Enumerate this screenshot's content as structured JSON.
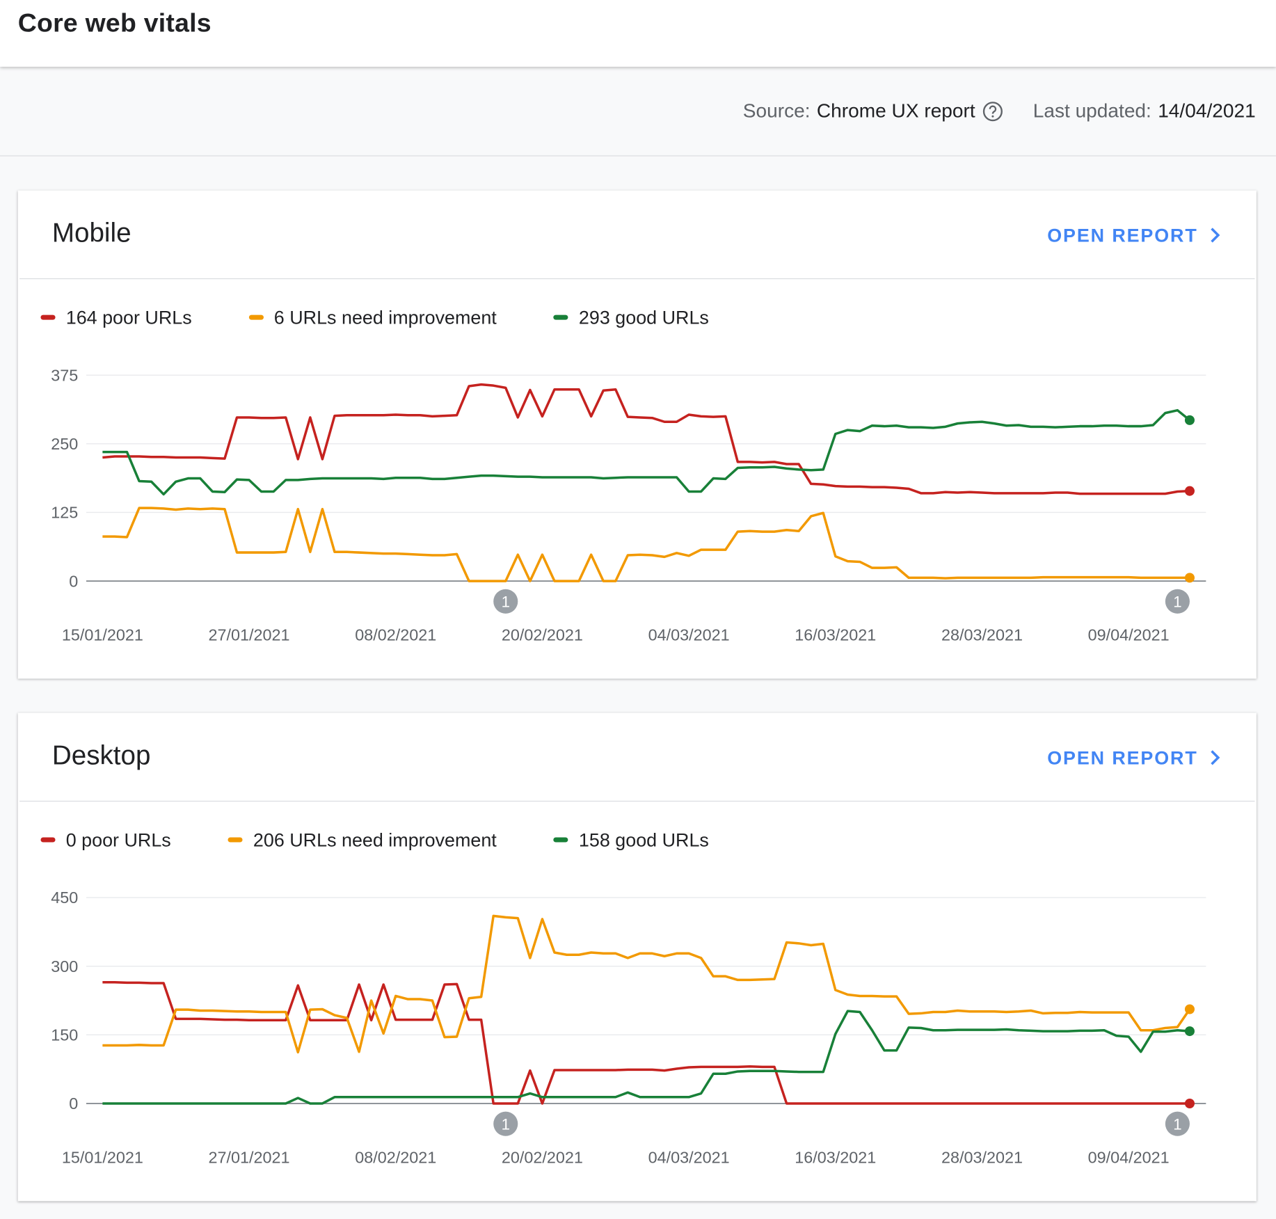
{
  "header": {
    "title": "Core web vitals"
  },
  "source": {
    "label": "Source:",
    "value": "Chrome UX report"
  },
  "updated": {
    "label": "Last updated:",
    "value": "14/04/2021"
  },
  "chart_data": [
    {
      "type": "line",
      "title": "Mobile",
      "link": "OPEN REPORT",
      "x": [
        "15/01/2021",
        "16/01/2021",
        "17/01/2021",
        "18/01/2021",
        "19/01/2021",
        "20/01/2021",
        "21/01/2021",
        "22/01/2021",
        "23/01/2021",
        "24/01/2021",
        "25/01/2021",
        "26/01/2021",
        "27/01/2021",
        "28/01/2021",
        "29/01/2021",
        "30/01/2021",
        "31/01/2021",
        "01/02/2021",
        "02/02/2021",
        "03/02/2021",
        "04/02/2021",
        "05/02/2021",
        "06/02/2021",
        "07/02/2021",
        "08/02/2021",
        "09/02/2021",
        "10/02/2021",
        "11/02/2021",
        "12/02/2021",
        "13/02/2021",
        "14/02/2021",
        "15/02/2021",
        "16/02/2021",
        "17/02/2021",
        "18/02/2021",
        "19/02/2021",
        "20/02/2021",
        "21/02/2021",
        "22/02/2021",
        "23/02/2021",
        "24/02/2021",
        "25/02/2021",
        "26/02/2021",
        "27/02/2021",
        "28/02/2021",
        "01/03/2021",
        "02/03/2021",
        "03/03/2021",
        "04/03/2021",
        "05/03/2021",
        "06/03/2021",
        "07/03/2021",
        "08/03/2021",
        "09/03/2021",
        "10/03/2021",
        "11/03/2021",
        "12/03/2021",
        "13/03/2021",
        "14/03/2021",
        "15/03/2021",
        "16/03/2021",
        "17/03/2021",
        "18/03/2021",
        "19/03/2021",
        "20/03/2021",
        "21/03/2021",
        "22/03/2021",
        "23/03/2021",
        "24/03/2021",
        "25/03/2021",
        "26/03/2021",
        "27/03/2021",
        "28/03/2021",
        "29/03/2021",
        "30/03/2021",
        "31/03/2021",
        "01/04/2021",
        "02/04/2021",
        "03/04/2021",
        "04/04/2021",
        "05/04/2021",
        "06/04/2021",
        "07/04/2021",
        "08/04/2021",
        "09/04/2021",
        "10/04/2021",
        "11/04/2021",
        "12/04/2021",
        "13/04/2021",
        "14/04/2021"
      ],
      "xticks": [
        "15/01/2021",
        "27/01/2021",
        "08/02/2021",
        "20/02/2021",
        "04/03/2021",
        "16/03/2021",
        "28/03/2021",
        "09/04/2021"
      ],
      "ylim": [
        0,
        375
      ],
      "yticks": [
        0,
        125,
        250,
        375
      ],
      "grid": true,
      "series": [
        {
          "name": "164 poor URLs",
          "color": "#c5221f",
          "values": [
            225,
            227,
            227,
            227,
            226,
            226,
            225,
            225,
            225,
            224,
            223,
            298,
            298,
            297,
            297,
            298,
            222,
            298,
            222,
            301,
            302,
            302,
            302,
            302,
            303,
            302,
            302,
            300,
            301,
            302,
            355,
            358,
            356,
            352,
            298,
            348,
            300,
            349,
            349,
            349,
            300,
            347,
            349,
            299,
            298,
            297,
            290,
            290,
            303,
            300,
            299,
            300,
            217,
            217,
            216,
            217,
            213,
            213,
            177,
            176,
            173,
            172,
            172,
            171,
            171,
            170,
            168,
            160,
            160,
            162,
            161,
            162,
            161,
            160,
            160,
            160,
            160,
            160,
            161,
            161,
            159,
            159,
            159,
            159,
            159,
            159,
            159,
            159,
            163,
            164
          ]
        },
        {
          "name": "6 URLs need improvement",
          "color": "#f29900",
          "values": [
            81,
            81,
            80,
            133,
            133,
            132,
            130,
            132,
            131,
            132,
            131,
            52,
            52,
            52,
            52,
            53,
            131,
            53,
            131,
            53,
            53,
            52,
            51,
            50,
            50,
            49,
            48,
            47,
            47,
            49,
            0,
            0,
            0,
            0,
            48,
            0,
            48,
            0,
            0,
            0,
            48,
            0,
            0,
            47,
            48,
            47,
            44,
            51,
            46,
            57,
            57,
            57,
            90,
            91,
            90,
            90,
            93,
            91,
            118,
            124,
            45,
            36,
            35,
            24,
            24,
            25,
            6,
            6,
            6,
            5,
            6,
            6,
            6,
            6,
            6,
            6,
            6,
            7,
            7,
            7,
            7,
            7,
            7,
            7,
            7,
            6,
            6,
            6,
            6,
            6
          ]
        },
        {
          "name": "293 good URLs",
          "color": "#188038",
          "values": [
            235,
            235,
            235,
            182,
            181,
            158,
            181,
            187,
            187,
            163,
            162,
            185,
            184,
            163,
            163,
            184,
            184,
            186,
            187,
            187,
            187,
            187,
            187,
            186,
            188,
            188,
            188,
            186,
            186,
            188,
            190,
            192,
            192,
            191,
            190,
            190,
            189,
            189,
            189,
            189,
            189,
            187,
            188,
            189,
            189,
            189,
            189,
            189,
            163,
            163,
            187,
            186,
            206,
            207,
            207,
            208,
            205,
            203,
            202,
            203,
            268,
            275,
            273,
            283,
            282,
            283,
            280,
            280,
            279,
            281,
            287,
            289,
            290,
            287,
            283,
            284,
            281,
            281,
            280,
            281,
            282,
            282,
            283,
            283,
            282,
            282,
            284,
            306,
            311,
            293
          ]
        }
      ],
      "annotations": [
        {
          "x": "17/02/2021",
          "label": "1"
        },
        {
          "x": "13/04/2021",
          "label": "1"
        }
      ]
    },
    {
      "type": "line",
      "title": "Desktop",
      "link": "OPEN REPORT",
      "x": [
        "15/01/2021",
        "16/01/2021",
        "17/01/2021",
        "18/01/2021",
        "19/01/2021",
        "20/01/2021",
        "21/01/2021",
        "22/01/2021",
        "23/01/2021",
        "24/01/2021",
        "25/01/2021",
        "26/01/2021",
        "27/01/2021",
        "28/01/2021",
        "29/01/2021",
        "30/01/2021",
        "31/01/2021",
        "01/02/2021",
        "02/02/2021",
        "03/02/2021",
        "04/02/2021",
        "05/02/2021",
        "06/02/2021",
        "07/02/2021",
        "08/02/2021",
        "09/02/2021",
        "10/02/2021",
        "11/02/2021",
        "12/02/2021",
        "13/02/2021",
        "14/02/2021",
        "15/02/2021",
        "16/02/2021",
        "17/02/2021",
        "18/02/2021",
        "19/02/2021",
        "20/02/2021",
        "21/02/2021",
        "22/02/2021",
        "23/02/2021",
        "24/02/2021",
        "25/02/2021",
        "26/02/2021",
        "27/02/2021",
        "28/02/2021",
        "01/03/2021",
        "02/03/2021",
        "03/03/2021",
        "04/03/2021",
        "05/03/2021",
        "06/03/2021",
        "07/03/2021",
        "08/03/2021",
        "09/03/2021",
        "10/03/2021",
        "11/03/2021",
        "12/03/2021",
        "13/03/2021",
        "14/03/2021",
        "15/03/2021",
        "16/03/2021",
        "17/03/2021",
        "18/03/2021",
        "19/03/2021",
        "20/03/2021",
        "21/03/2021",
        "22/03/2021",
        "23/03/2021",
        "24/03/2021",
        "25/03/2021",
        "26/03/2021",
        "27/03/2021",
        "28/03/2021",
        "29/03/2021",
        "30/03/2021",
        "31/03/2021",
        "01/04/2021",
        "02/04/2021",
        "03/04/2021",
        "04/04/2021",
        "05/04/2021",
        "06/04/2021",
        "07/04/2021",
        "08/04/2021",
        "09/04/2021",
        "10/04/2021",
        "11/04/2021",
        "12/04/2021",
        "13/04/2021",
        "14/04/2021"
      ],
      "xticks": [
        "15/01/2021",
        "27/01/2021",
        "08/02/2021",
        "20/02/2021",
        "04/03/2021",
        "16/03/2021",
        "28/03/2021",
        "09/04/2021"
      ],
      "ylim": [
        0,
        450
      ],
      "yticks": [
        0,
        150,
        300,
        450
      ],
      "grid": true,
      "series": [
        {
          "name": "0 poor URLs",
          "color": "#c5221f",
          "values": [
            265,
            265,
            264,
            264,
            263,
            263,
            185,
            185,
            185,
            184,
            183,
            183,
            182,
            182,
            182,
            182,
            258,
            182,
            182,
            182,
            182,
            260,
            182,
            260,
            183,
            183,
            183,
            183,
            260,
            261,
            183,
            183,
            0,
            0,
            0,
            72,
            0,
            73,
            73,
            73,
            73,
            73,
            73,
            74,
            74,
            74,
            72,
            76,
            79,
            80,
            80,
            80,
            80,
            81,
            80,
            80,
            0,
            0,
            0,
            0,
            0,
            0,
            0,
            0,
            0,
            0,
            0,
            0,
            0,
            0,
            0,
            0,
            0,
            0,
            0,
            0,
            0,
            0,
            0,
            0,
            0,
            0,
            0,
            0,
            0,
            0,
            0,
            0,
            0,
            0
          ]
        },
        {
          "name": "206 URLs need improvement",
          "color": "#f29900",
          "values": [
            127,
            127,
            127,
            128,
            127,
            127,
            205,
            205,
            203,
            203,
            202,
            201,
            201,
            200,
            200,
            200,
            112,
            205,
            206,
            193,
            187,
            113,
            225,
            153,
            235,
            228,
            228,
            225,
            145,
            146,
            230,
            233,
            410,
            407,
            405,
            318,
            403,
            330,
            325,
            325,
            330,
            328,
            328,
            318,
            328,
            328,
            322,
            328,
            328,
            318,
            278,
            278,
            270,
            270,
            271,
            272,
            352,
            350,
            346,
            349,
            248,
            238,
            235,
            235,
            234,
            234,
            196,
            197,
            200,
            200,
            203,
            201,
            201,
            201,
            200,
            201,
            203,
            197,
            198,
            198,
            200,
            199,
            199,
            199,
            199,
            160,
            160,
            165,
            167,
            206
          ]
        },
        {
          "name": "158 good URLs",
          "color": "#188038",
          "values": [
            0,
            0,
            0,
            0,
            0,
            0,
            0,
            0,
            0,
            0,
            0,
            0,
            0,
            0,
            0,
            0,
            12,
            0,
            0,
            14,
            14,
            14,
            14,
            14,
            14,
            14,
            14,
            14,
            14,
            14,
            14,
            14,
            14,
            14,
            14,
            22,
            14,
            14,
            14,
            14,
            14,
            14,
            14,
            24,
            14,
            14,
            14,
            14,
            14,
            22,
            65,
            65,
            70,
            71,
            71,
            71,
            70,
            69,
            69,
            69,
            152,
            202,
            200,
            160,
            116,
            116,
            166,
            165,
            160,
            160,
            161,
            161,
            161,
            161,
            162,
            160,
            159,
            158,
            158,
            158,
            159,
            159,
            160,
            148,
            146,
            113,
            157,
            157,
            160,
            158
          ]
        }
      ],
      "annotations": [
        {
          "x": "17/02/2021",
          "label": "1"
        },
        {
          "x": "13/04/2021",
          "label": "1"
        }
      ]
    }
  ]
}
